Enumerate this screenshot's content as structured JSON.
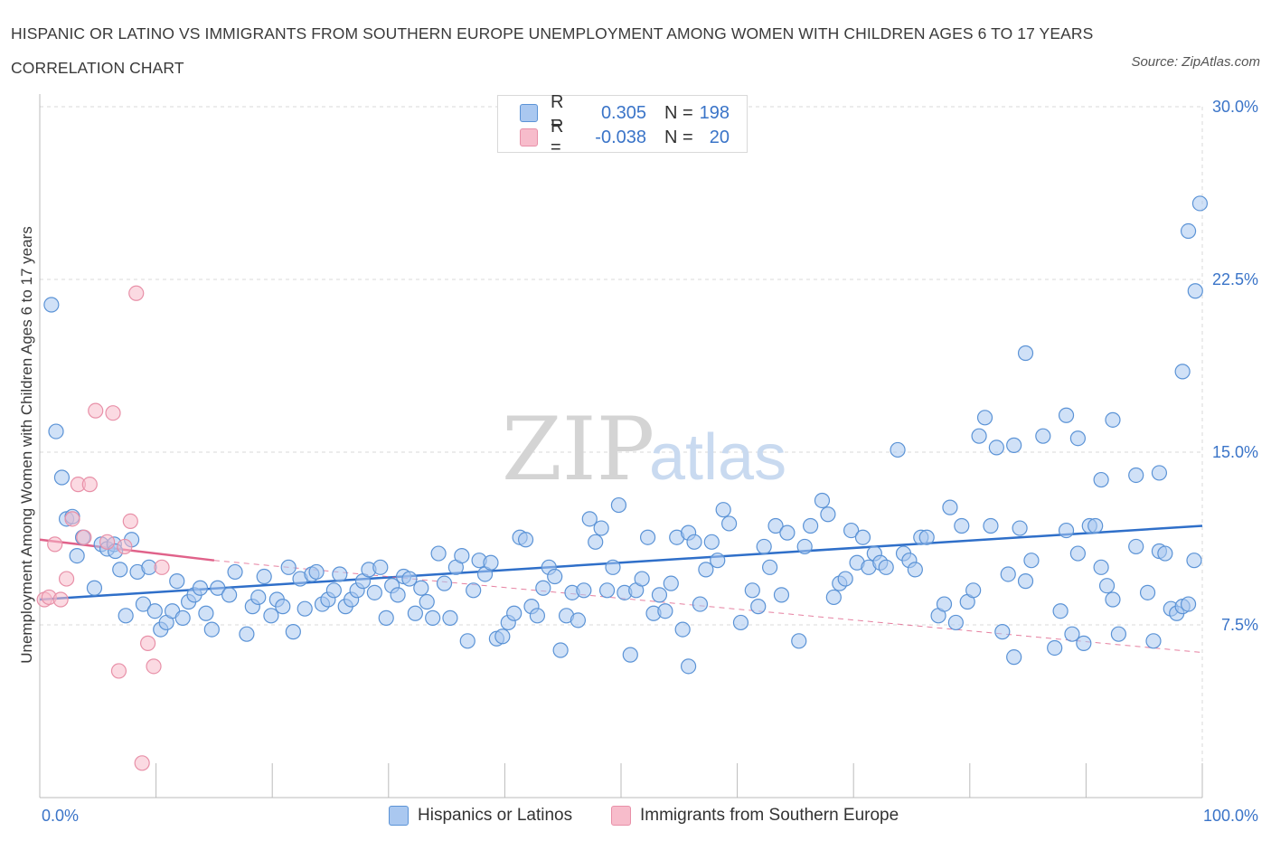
{
  "header": {
    "title": "HISPANIC OR LATINO VS IMMIGRANTS FROM SOUTHERN EUROPE UNEMPLOYMENT AMONG WOMEN WITH CHILDREN AGES 6 TO 17 YEARS CORRELATION CHART",
    "source": "Source: ZipAtlas.com"
  },
  "colors": {
    "blue_fill": "#aac8f0",
    "blue_stroke": "#5b93d6",
    "blue_line": "#2f6fc9",
    "pink_fill": "#f7bccb",
    "pink_stroke": "#e890a8",
    "pink_line": "#e0628a",
    "axis_text": "#3a74c8",
    "grid": "#d8d8d8"
  },
  "legend": {
    "rows": [
      {
        "r_label": "R =",
        "r_value": "0.305",
        "n_label": "N =",
        "n_value": "198",
        "color": "#aac8f0"
      },
      {
        "r_label": "R =",
        "r_value": "-0.038",
        "n_label": "N =",
        "n_value": "20",
        "color": "#f7bccb"
      }
    ]
  },
  "watermark": {
    "zip": "ZIP",
    "atlas": "atlas"
  },
  "chart_data": {
    "type": "scatter",
    "title": "HISPANIC OR LATINO VS IMMIGRANTS FROM SOUTHERN EUROPE UNEMPLOYMENT AMONG WOMEN WITH CHILDREN AGES 6 TO 17 YEARS CORRELATION CHART",
    "xlabel": "",
    "ylabel": "Unemployment Among Women with Children Ages 6 to 17 years",
    "xlim": [
      0,
      100
    ],
    "ylim": [
      0,
      30
    ],
    "x_tick_labels": [
      "0.0%",
      "100.0%"
    ],
    "y_ticks": [
      7.5,
      15.0,
      22.5,
      30.0
    ],
    "y_tick_labels": [
      "7.5%",
      "15.0%",
      "22.5%",
      "30.0%"
    ],
    "grid": true,
    "legend_position": "top-center",
    "series": [
      {
        "name": "Hispanics or Latinos",
        "r": 0.305,
        "n": 198,
        "trend": {
          "x": [
            0,
            100
          ],
          "y": [
            8.6,
            11.8
          ],
          "style": "solid"
        },
        "points": [
          [
            1.0,
            21.4
          ],
          [
            1.4,
            15.9
          ],
          [
            1.9,
            13.9
          ],
          [
            2.3,
            12.1
          ],
          [
            2.8,
            12.2
          ],
          [
            3.2,
            10.5
          ],
          [
            3.7,
            11.3
          ],
          [
            4.7,
            9.1
          ],
          [
            5.3,
            11.0
          ],
          [
            5.8,
            10.8
          ],
          [
            6.4,
            11.0
          ],
          [
            6.5,
            10.7
          ],
          [
            6.9,
            9.9
          ],
          [
            7.4,
            7.9
          ],
          [
            7.9,
            11.2
          ],
          [
            8.4,
            9.8
          ],
          [
            8.9,
            8.4
          ],
          [
            9.4,
            10.0
          ],
          [
            9.9,
            8.1
          ],
          [
            10.4,
            7.3
          ],
          [
            10.9,
            7.6
          ],
          [
            11.4,
            8.1
          ],
          [
            11.8,
            9.4
          ],
          [
            12.3,
            7.8
          ],
          [
            12.8,
            8.5
          ],
          [
            13.3,
            8.8
          ],
          [
            13.8,
            9.1
          ],
          [
            14.3,
            8.0
          ],
          [
            14.8,
            7.3
          ],
          [
            15.3,
            9.1
          ],
          [
            16.3,
            8.8
          ],
          [
            16.8,
            9.8
          ],
          [
            17.8,
            7.1
          ],
          [
            18.3,
            8.3
          ],
          [
            18.8,
            8.7
          ],
          [
            19.3,
            9.6
          ],
          [
            19.9,
            7.9
          ],
          [
            20.4,
            8.6
          ],
          [
            20.9,
            8.3
          ],
          [
            21.4,
            10.0
          ],
          [
            21.8,
            7.2
          ],
          [
            22.4,
            9.5
          ],
          [
            22.8,
            8.2
          ],
          [
            23.4,
            9.7
          ],
          [
            23.8,
            9.8
          ],
          [
            24.3,
            8.4
          ],
          [
            24.8,
            8.6
          ],
          [
            25.3,
            9.0
          ],
          [
            25.8,
            9.7
          ],
          [
            26.3,
            8.3
          ],
          [
            26.8,
            8.6
          ],
          [
            27.3,
            9.0
          ],
          [
            27.8,
            9.4
          ],
          [
            28.3,
            9.9
          ],
          [
            28.8,
            8.9
          ],
          [
            29.3,
            10.0
          ],
          [
            29.8,
            7.8
          ],
          [
            30.3,
            9.2
          ],
          [
            30.8,
            8.8
          ],
          [
            31.3,
            9.6
          ],
          [
            31.8,
            9.5
          ],
          [
            32.3,
            8.0
          ],
          [
            32.8,
            9.1
          ],
          [
            33.3,
            8.5
          ],
          [
            33.8,
            7.8
          ],
          [
            34.3,
            10.6
          ],
          [
            34.8,
            9.3
          ],
          [
            35.3,
            7.8
          ],
          [
            35.8,
            10.0
          ],
          [
            36.3,
            10.5
          ],
          [
            36.8,
            6.8
          ],
          [
            37.3,
            9.0
          ],
          [
            37.8,
            10.3
          ],
          [
            38.3,
            9.7
          ],
          [
            38.8,
            10.2
          ],
          [
            39.3,
            6.9
          ],
          [
            39.8,
            7.0
          ],
          [
            40.3,
            7.6
          ],
          [
            40.8,
            8.0
          ],
          [
            41.3,
            11.3
          ],
          [
            41.8,
            11.2
          ],
          [
            42.3,
            8.3
          ],
          [
            42.8,
            7.9
          ],
          [
            43.3,
            9.1
          ],
          [
            43.8,
            10.0
          ],
          [
            44.3,
            9.6
          ],
          [
            44.8,
            6.4
          ],
          [
            45.3,
            7.9
          ],
          [
            45.8,
            8.9
          ],
          [
            46.3,
            7.7
          ],
          [
            46.8,
            9.0
          ],
          [
            47.3,
            12.1
          ],
          [
            47.8,
            11.1
          ],
          [
            48.3,
            11.7
          ],
          [
            48.8,
            9.0
          ],
          [
            49.3,
            10.0
          ],
          [
            49.8,
            12.7
          ],
          [
            50.3,
            8.9
          ],
          [
            50.8,
            6.2
          ],
          [
            51.3,
            9.0
          ],
          [
            51.8,
            9.5
          ],
          [
            52.3,
            11.3
          ],
          [
            52.8,
            8.0
          ],
          [
            53.3,
            8.8
          ],
          [
            53.8,
            8.1
          ],
          [
            54.3,
            9.3
          ],
          [
            54.8,
            11.3
          ],
          [
            55.3,
            7.3
          ],
          [
            55.8,
            11.5
          ],
          [
            56.3,
            11.1
          ],
          [
            56.8,
            8.4
          ],
          [
            57.3,
            9.9
          ],
          [
            57.8,
            11.1
          ],
          [
            58.3,
            10.3
          ],
          [
            58.8,
            12.5
          ],
          [
            59.3,
            11.9
          ],
          [
            60.3,
            7.6
          ],
          [
            61.3,
            9.0
          ],
          [
            61.8,
            8.3
          ],
          [
            62.3,
            10.9
          ],
          [
            62.8,
            10.0
          ],
          [
            63.3,
            11.8
          ],
          [
            63.8,
            8.8
          ],
          [
            64.3,
            11.5
          ],
          [
            65.3,
            6.8
          ],
          [
            65.8,
            10.9
          ],
          [
            66.3,
            11.8
          ],
          [
            67.3,
            12.9
          ],
          [
            67.8,
            12.3
          ],
          [
            68.3,
            8.7
          ],
          [
            68.8,
            9.3
          ],
          [
            69.3,
            9.5
          ],
          [
            69.8,
            11.6
          ],
          [
            70.3,
            10.2
          ],
          [
            70.8,
            11.3
          ],
          [
            71.3,
            10.0
          ],
          [
            71.8,
            10.6
          ],
          [
            72.3,
            10.2
          ],
          [
            72.8,
            10.0
          ],
          [
            73.8,
            15.1
          ],
          [
            74.3,
            10.6
          ],
          [
            74.8,
            10.3
          ],
          [
            75.3,
            9.9
          ],
          [
            75.8,
            11.3
          ],
          [
            76.3,
            11.3
          ],
          [
            77.3,
            7.9
          ],
          [
            77.8,
            8.4
          ],
          [
            78.3,
            12.6
          ],
          [
            78.8,
            7.6
          ],
          [
            79.3,
            11.8
          ],
          [
            79.8,
            8.5
          ],
          [
            80.3,
            9.0
          ],
          [
            80.8,
            15.7
          ],
          [
            81.3,
            16.5
          ],
          [
            81.8,
            11.8
          ],
          [
            82.3,
            15.2
          ],
          [
            82.8,
            7.2
          ],
          [
            83.3,
            9.7
          ],
          [
            83.8,
            6.1
          ],
          [
            84.3,
            11.7
          ],
          [
            84.8,
            9.4
          ],
          [
            85.3,
            10.3
          ],
          [
            86.3,
            15.7
          ],
          [
            87.3,
            6.5
          ],
          [
            87.8,
            8.1
          ],
          [
            88.3,
            11.6
          ],
          [
            88.8,
            7.1
          ],
          [
            89.3,
            10.6
          ],
          [
            89.8,
            6.7
          ],
          [
            90.3,
            11.8
          ],
          [
            90.8,
            11.8
          ],
          [
            91.3,
            10.0
          ],
          [
            91.8,
            9.2
          ],
          [
            92.3,
            8.6
          ],
          [
            92.8,
            7.1
          ],
          [
            94.3,
            10.9
          ],
          [
            95.3,
            8.9
          ],
          [
            95.8,
            6.8
          ],
          [
            96.3,
            10.7
          ],
          [
            96.8,
            10.6
          ],
          [
            97.3,
            8.2
          ],
          [
            97.8,
            8.0
          ],
          [
            98.3,
            8.3
          ],
          [
            98.8,
            8.4
          ],
          [
            99.3,
            10.3
          ],
          [
            99.8,
            25.8
          ],
          [
            99.4,
            22.0
          ],
          [
            98.8,
            24.6
          ],
          [
            98.3,
            18.5
          ],
          [
            96.3,
            14.1
          ],
          [
            94.3,
            14.0
          ],
          [
            92.3,
            16.4
          ],
          [
            91.3,
            13.8
          ],
          [
            89.3,
            15.6
          ],
          [
            88.3,
            16.6
          ],
          [
            84.8,
            19.3
          ],
          [
            83.8,
            15.3
          ],
          [
            55.8,
            5.7
          ]
        ]
      },
      {
        "name": "Immigrants from Southern Europe",
        "r": -0.038,
        "n": 20,
        "trend": {
          "x": [
            0,
            15
          ],
          "y": [
            11.2,
            10.3
          ],
          "style": "solid",
          "extended": {
            "x": [
              15,
              100
            ],
            "y": [
              10.3,
              6.3
            ],
            "style": "dashed"
          }
        },
        "points": [
          [
            0.4,
            8.6
          ],
          [
            0.8,
            8.7
          ],
          [
            1.3,
            11.0
          ],
          [
            1.8,
            8.6
          ],
          [
            2.3,
            9.5
          ],
          [
            2.8,
            12.1
          ],
          [
            3.3,
            13.6
          ],
          [
            3.8,
            11.3
          ],
          [
            4.3,
            13.6
          ],
          [
            4.8,
            16.8
          ],
          [
            5.8,
            11.1
          ],
          [
            6.3,
            16.7
          ],
          [
            6.8,
            5.5
          ],
          [
            7.3,
            10.9
          ],
          [
            7.8,
            12.0
          ],
          [
            8.3,
            21.9
          ],
          [
            8.8,
            1.5
          ],
          [
            9.3,
            6.7
          ],
          [
            9.8,
            5.7
          ],
          [
            10.5,
            10.0
          ]
        ]
      }
    ]
  },
  "bottom_legend": {
    "items": [
      {
        "label": "Hispanics or Latinos",
        "color": "#aac8f0"
      },
      {
        "label": "Immigrants from Southern Europe",
        "color": "#f7bccb"
      }
    ]
  }
}
